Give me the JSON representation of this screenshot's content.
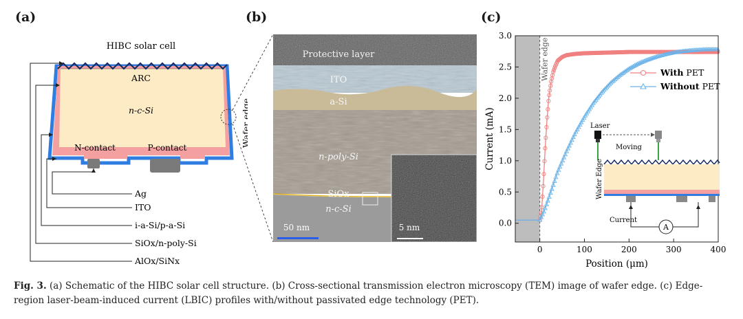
{
  "figure": {
    "panel_labels": [
      "(a)",
      "(b)",
      "(c)"
    ]
  },
  "panel_a": {
    "title": "HIBC solar cell",
    "arc": "ARC",
    "bulk": "n-c-Si",
    "n_contact": "N-contact",
    "p_contact": "P-contact",
    "wafer_edge": "Wafer edge",
    "legend": [
      "Ag",
      "ITO",
      "i-a-Si/p-a-Si",
      "SiOx/n-poly-Si",
      "AlOx/SiNx"
    ]
  },
  "panel_b": {
    "layers": [
      "Protective layer",
      "ITO",
      "a-Si",
      "n-poly-Si",
      "SiOx",
      "n-c-Si"
    ],
    "scale_main": "50 nm",
    "scale_inset": "5 nm"
  },
  "panel_c": {
    "wafer_edge_label": "Wafer edge",
    "inset": {
      "laser": "Laser",
      "moving": "Moving",
      "wafer_edge": "Wafer Edge",
      "current": "Current",
      "ammeter": "A"
    }
  },
  "chart_data": {
    "type": "line",
    "title": "",
    "xlabel": "Position (μm)",
    "ylabel": "Current (mA)",
    "xlim": [
      -55,
      400
    ],
    "ylim": [
      -0.3,
      3.0
    ],
    "xticks": [
      0,
      100,
      200,
      300,
      400
    ],
    "yticks": [
      0.0,
      0.5,
      1.0,
      1.5,
      2.0,
      2.5,
      3.0
    ],
    "shaded_region": [
      -55,
      0
    ],
    "legend_position": "upper-right",
    "series": [
      {
        "name": "With PET",
        "name_bold": "With",
        "name_rest": " PET",
        "color": "#f08080",
        "marker": "circle",
        "x": [
          -55,
          -20,
          0,
          4,
          8,
          12,
          16,
          20,
          25,
          30,
          35,
          40,
          50,
          60,
          80,
          100,
          150,
          200,
          250,
          300,
          350,
          400
        ],
        "y": [
          0.05,
          0.05,
          0.05,
          0.2,
          0.65,
          1.2,
          1.65,
          2.0,
          2.25,
          2.42,
          2.52,
          2.6,
          2.66,
          2.69,
          2.71,
          2.72,
          2.73,
          2.74,
          2.74,
          2.74,
          2.74,
          2.74
        ]
      },
      {
        "name": "Without PET",
        "name_bold": "Without",
        "name_rest": " PET",
        "color": "#6cb4ea",
        "marker": "triangle",
        "x": [
          -55,
          -20,
          0,
          10,
          20,
          40,
          60,
          80,
          100,
          120,
          140,
          160,
          180,
          200,
          220,
          240,
          260,
          280,
          300,
          320,
          350,
          375,
          400
        ],
        "y": [
          0.05,
          0.05,
          0.05,
          0.2,
          0.4,
          0.82,
          1.15,
          1.45,
          1.7,
          1.92,
          2.1,
          2.25,
          2.37,
          2.47,
          2.55,
          2.61,
          2.66,
          2.7,
          2.73,
          2.75,
          2.77,
          2.78,
          2.78
        ]
      }
    ]
  },
  "caption": {
    "label": "Fig. 3.",
    "text": " (a) Schematic of the HIBC solar cell structure. (b) Cross-sectional transmission electron microscopy (TEM) image of wafer edge. (c) Edge-region laser-beam-induced current (LBIC) profiles with/without passivated edge technology (PET)."
  }
}
